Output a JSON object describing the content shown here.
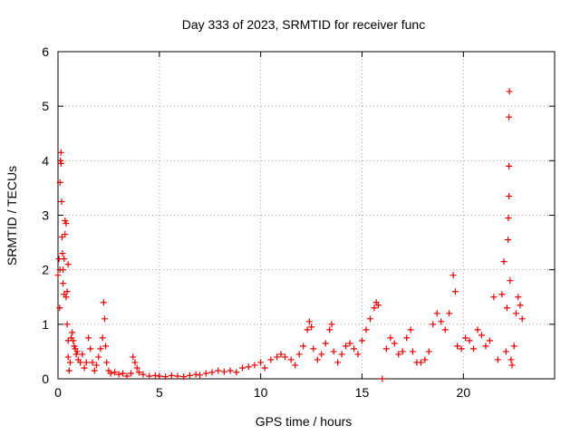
{
  "chart_data": {
    "type": "scatter",
    "title": "Day 333 of 2023, SRMTID for receiver func",
    "xlabel": "GPS time / hours",
    "ylabel": "SRMTID / TECUs",
    "xlim": [
      0,
      24.5
    ],
    "ylim": [
      0,
      6
    ],
    "xticks": [
      0,
      5,
      10,
      15,
      20
    ],
    "xtick_labels": [
      "0",
      "5",
      "10",
      "15",
      "20"
    ],
    "yticks": [
      0,
      1,
      2,
      3,
      4,
      5,
      6
    ],
    "ytick_labels": [
      "0",
      "1",
      "2",
      "3",
      "4",
      "5",
      "6"
    ],
    "grid": true,
    "marker": "+",
    "marker_color": "#e00000",
    "series": [
      {
        "name": "SRMTID",
        "points": [
          [
            0.0,
            1.9
          ],
          [
            0.05,
            2.2
          ],
          [
            0.08,
            1.3
          ],
          [
            0.1,
            2.0
          ],
          [
            0.1,
            3.6
          ],
          [
            0.12,
            4.0
          ],
          [
            0.15,
            3.95
          ],
          [
            0.15,
            4.15
          ],
          [
            0.18,
            3.25
          ],
          [
            0.2,
            2.6
          ],
          [
            0.22,
            2.3
          ],
          [
            0.25,
            2.0
          ],
          [
            0.25,
            1.75
          ],
          [
            0.3,
            1.55
          ],
          [
            0.3,
            2.2
          ],
          [
            0.35,
            2.9
          ],
          [
            0.4,
            2.85
          ],
          [
            0.35,
            2.65
          ],
          [
            0.4,
            1.5
          ],
          [
            0.45,
            1.6
          ],
          [
            0.5,
            2.1
          ],
          [
            0.45,
            1.0
          ],
          [
            0.5,
            0.7
          ],
          [
            0.5,
            0.4
          ],
          [
            0.55,
            0.15
          ],
          [
            0.6,
            0.3
          ],
          [
            0.65,
            0.75
          ],
          [
            0.7,
            0.85
          ],
          [
            0.75,
            0.7
          ],
          [
            0.8,
            0.6
          ],
          [
            0.85,
            0.55
          ],
          [
            0.9,
            0.45
          ],
          [
            0.95,
            0.5
          ],
          [
            1.0,
            0.35
          ],
          [
            1.1,
            0.3
          ],
          [
            1.2,
            0.45
          ],
          [
            1.3,
            0.2
          ],
          [
            1.4,
            0.3
          ],
          [
            1.5,
            0.75
          ],
          [
            1.6,
            0.55
          ],
          [
            1.7,
            0.3
          ],
          [
            1.8,
            0.15
          ],
          [
            1.9,
            0.25
          ],
          [
            2.0,
            0.4
          ],
          [
            2.1,
            0.55
          ],
          [
            2.2,
            0.75
          ],
          [
            2.25,
            1.4
          ],
          [
            2.3,
            1.1
          ],
          [
            2.35,
            0.6
          ],
          [
            2.4,
            0.3
          ],
          [
            2.5,
            0.15
          ],
          [
            2.6,
            0.1
          ],
          [
            2.8,
            0.12
          ],
          [
            3.0,
            0.08
          ],
          [
            3.2,
            0.1
          ],
          [
            3.4,
            0.05
          ],
          [
            3.6,
            0.1
          ],
          [
            3.7,
            0.4
          ],
          [
            3.8,
            0.3
          ],
          [
            3.9,
            0.2
          ],
          [
            4.0,
            0.12
          ],
          [
            4.2,
            0.08
          ],
          [
            4.5,
            0.05
          ],
          [
            4.8,
            0.06
          ],
          [
            5.0,
            0.05
          ],
          [
            5.3,
            0.04
          ],
          [
            5.6,
            0.06
          ],
          [
            5.9,
            0.05
          ],
          [
            6.2,
            0.04
          ],
          [
            6.5,
            0.06
          ],
          [
            6.8,
            0.08
          ],
          [
            7.0,
            0.07
          ],
          [
            7.3,
            0.1
          ],
          [
            7.6,
            0.12
          ],
          [
            7.9,
            0.15
          ],
          [
            8.2,
            0.13
          ],
          [
            8.5,
            0.15
          ],
          [
            8.8,
            0.12
          ],
          [
            9.1,
            0.2
          ],
          [
            9.4,
            0.22
          ],
          [
            9.7,
            0.25
          ],
          [
            10.0,
            0.3
          ],
          [
            10.2,
            0.2
          ],
          [
            10.5,
            0.35
          ],
          [
            10.8,
            0.4
          ],
          [
            11.0,
            0.45
          ],
          [
            11.2,
            0.4
          ],
          [
            11.5,
            0.35
          ],
          [
            11.7,
            0.25
          ],
          [
            11.9,
            0.45
          ],
          [
            12.1,
            0.6
          ],
          [
            12.3,
            0.9
          ],
          [
            12.4,
            1.05
          ],
          [
            12.5,
            0.95
          ],
          [
            12.6,
            0.55
          ],
          [
            12.8,
            0.35
          ],
          [
            13.0,
            0.45
          ],
          [
            13.2,
            0.65
          ],
          [
            13.4,
            0.9
          ],
          [
            13.5,
            1.0
          ],
          [
            13.6,
            0.5
          ],
          [
            13.8,
            0.3
          ],
          [
            14.0,
            0.45
          ],
          [
            14.2,
            0.6
          ],
          [
            14.4,
            0.65
          ],
          [
            14.6,
            0.55
          ],
          [
            14.8,
            0.45
          ],
          [
            15.0,
            0.7
          ],
          [
            15.2,
            0.9
          ],
          [
            15.4,
            1.1
          ],
          [
            15.6,
            1.3
          ],
          [
            15.7,
            1.4
          ],
          [
            15.8,
            1.35
          ],
          [
            16.0,
            0.0
          ],
          [
            16.2,
            0.55
          ],
          [
            16.4,
            0.75
          ],
          [
            16.6,
            0.65
          ],
          [
            16.8,
            0.45
          ],
          [
            17.0,
            0.5
          ],
          [
            17.2,
            0.75
          ],
          [
            17.4,
            0.9
          ],
          [
            17.5,
            0.5
          ],
          [
            17.7,
            0.3
          ],
          [
            17.9,
            0.3
          ],
          [
            18.1,
            0.35
          ],
          [
            18.3,
            0.5
          ],
          [
            18.5,
            1.0
          ],
          [
            18.7,
            1.2
          ],
          [
            18.9,
            1.05
          ],
          [
            19.1,
            0.9
          ],
          [
            19.3,
            1.2
          ],
          [
            19.5,
            1.9
          ],
          [
            19.6,
            1.6
          ],
          [
            19.7,
            0.6
          ],
          [
            19.9,
            0.55
          ],
          [
            20.1,
            0.75
          ],
          [
            20.3,
            0.7
          ],
          [
            20.5,
            0.55
          ],
          [
            20.7,
            0.9
          ],
          [
            20.9,
            0.8
          ],
          [
            21.1,
            0.6
          ],
          [
            21.3,
            0.7
          ],
          [
            21.5,
            1.5
          ],
          [
            21.7,
            0.35
          ],
          [
            21.9,
            1.55
          ],
          [
            22.0,
            2.15
          ],
          [
            22.1,
            0.5
          ],
          [
            22.15,
            1.3
          ],
          [
            22.2,
            2.55
          ],
          [
            22.22,
            2.95
          ],
          [
            22.25,
            3.35
          ],
          [
            22.25,
            3.9
          ],
          [
            22.25,
            4.8
          ],
          [
            22.27,
            5.27
          ],
          [
            22.3,
            1.8
          ],
          [
            22.35,
            0.35
          ],
          [
            22.4,
            0.25
          ],
          [
            22.5,
            0.6
          ],
          [
            22.6,
            1.2
          ],
          [
            22.7,
            1.5
          ],
          [
            22.8,
            1.35
          ],
          [
            22.9,
            1.1
          ]
        ]
      }
    ]
  }
}
